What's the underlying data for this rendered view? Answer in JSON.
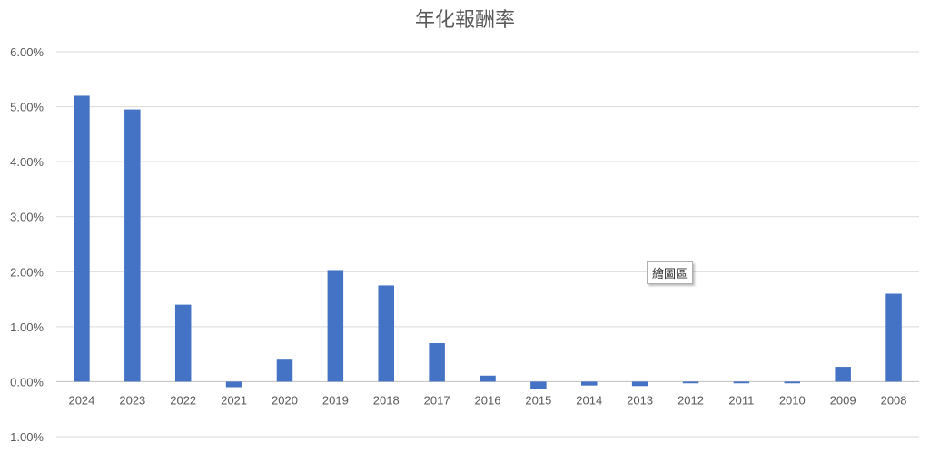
{
  "chart_data": {
    "type": "bar",
    "title": "年化報酬率",
    "categories": [
      "2024",
      "2023",
      "2022",
      "2021",
      "2020",
      "2019",
      "2018",
      "2017",
      "2016",
      "2015",
      "2014",
      "2013",
      "2012",
      "2011",
      "2010",
      "2009",
      "2008"
    ],
    "series": [
      {
        "values": [
          5.2,
          4.95,
          1.4,
          -0.1,
          0.4,
          2.03,
          1.75,
          0.7,
          0.11,
          -0.13,
          -0.07,
          -0.08,
          -0.03,
          -0.03,
          -0.03,
          0.27,
          1.6
        ]
      }
    ],
    "ylim": [
      -1,
      6
    ],
    "yticks": [
      -1,
      0,
      1,
      2,
      3,
      4,
      5,
      6
    ],
    "ytick_labels": [
      "-1.00%",
      "0.00%",
      "1.00%",
      "2.00%",
      "3.00%",
      "4.00%",
      "5.00%",
      "6.00%"
    ],
    "grid": true,
    "bar_color": "#4472c4"
  },
  "tooltip": {
    "text": "繪圖區"
  }
}
